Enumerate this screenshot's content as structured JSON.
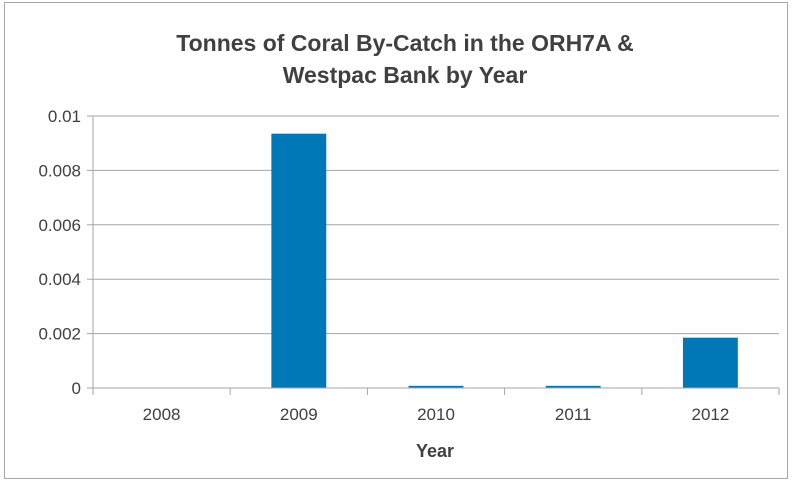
{
  "chart_data": {
    "type": "bar",
    "title": "Tonnes of Coral By-Catch in the ORH7A & Westpac Bank by Year",
    "title_lines": [
      "Tonnes of Coral By-Catch in the ORH7A &",
      "Westpac Bank by Year"
    ],
    "xlabel": "Year",
    "ylabel": "",
    "categories": [
      "2008",
      "2009",
      "2010",
      "2011",
      "2012"
    ],
    "values": [
      0,
      0.00935,
      8e-05,
      8e-05,
      0.00185
    ],
    "ylim": [
      0,
      0.01
    ],
    "yticks": [
      "0",
      "0.002",
      "0.004",
      "0.006",
      "0.008",
      "0.01"
    ],
    "grid": true,
    "legend": "none",
    "bar_color": "#0077b6",
    "grid_color": "#a6a6a6"
  }
}
